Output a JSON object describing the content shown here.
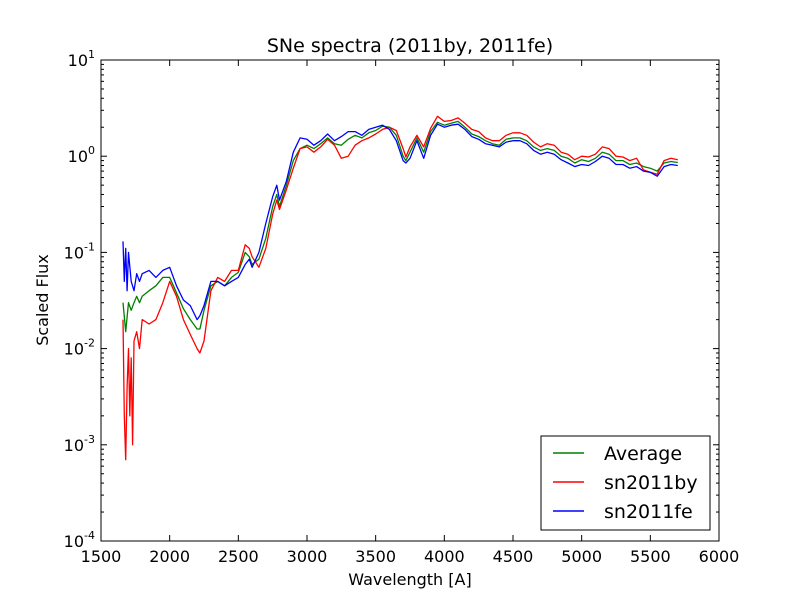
{
  "chart_data": {
    "type": "line",
    "title": "SNe spectra (2011by, 2011fe)",
    "xlabel": "Wavelength [A]",
    "ylabel": "Scaled Flux",
    "xlim": [
      1500,
      6000
    ],
    "ylim": [
      0.0001,
      10
    ],
    "yscale": "log",
    "xticks": [
      1500,
      2000,
      2500,
      3000,
      3500,
      4000,
      4500,
      5000,
      5500,
      6000
    ],
    "yticks": [
      {
        "value": 0.0001,
        "base": "10",
        "exp": "-4"
      },
      {
        "value": 0.001,
        "base": "10",
        "exp": "-3"
      },
      {
        "value": 0.01,
        "base": "10",
        "exp": "-2"
      },
      {
        "value": 0.1,
        "base": "10",
        "exp": "-1"
      },
      {
        "value": 1,
        "base": "10",
        "exp": "0"
      },
      {
        "value": 10,
        "base": "10",
        "exp": "1"
      }
    ],
    "grid": false,
    "legend_position": "lower-right",
    "series": [
      {
        "name": "Average",
        "color": "#008000",
        "x": [
          1660,
          1680,
          1700,
          1720,
          1740,
          1760,
          1780,
          1800,
          1850,
          1900,
          1950,
          2000,
          2050,
          2100,
          2150,
          2200,
          2220,
          2250,
          2300,
          2350,
          2400,
          2450,
          2500,
          2550,
          2580,
          2600,
          2650,
          2700,
          2750,
          2780,
          2800,
          2850,
          2900,
          2950,
          3000,
          3050,
          3100,
          3150,
          3200,
          3250,
          3300,
          3350,
          3400,
          3450,
          3500,
          3550,
          3600,
          3650,
          3700,
          3720,
          3750,
          3800,
          3850,
          3900,
          3950,
          4000,
          4050,
          4100,
          4150,
          4200,
          4250,
          4300,
          4350,
          4400,
          4450,
          4500,
          4550,
          4600,
          4650,
          4700,
          4750,
          4800,
          4850,
          4900,
          4950,
          5000,
          5050,
          5100,
          5150,
          5200,
          5250,
          5300,
          5350,
          5400,
          5450,
          5500,
          5550,
          5600,
          5650,
          5700
        ],
        "y": [
          0.03,
          0.015,
          0.03,
          0.025,
          0.03,
          0.035,
          0.03,
          0.035,
          0.04,
          0.045,
          0.055,
          0.055,
          0.038,
          0.026,
          0.02,
          0.016,
          0.016,
          0.025,
          0.045,
          0.05,
          0.045,
          0.055,
          0.062,
          0.1,
          0.09,
          0.075,
          0.085,
          0.14,
          0.3,
          0.4,
          0.3,
          0.5,
          0.9,
          1.2,
          1.3,
          1.2,
          1.35,
          1.55,
          1.35,
          1.3,
          1.5,
          1.65,
          1.55,
          1.75,
          1.85,
          2.05,
          2.0,
          1.65,
          1.0,
          0.9,
          1.1,
          1.55,
          1.1,
          1.8,
          2.25,
          2.1,
          2.2,
          2.3,
          2.0,
          1.7,
          1.6,
          1.45,
          1.35,
          1.3,
          1.5,
          1.55,
          1.55,
          1.45,
          1.25,
          1.15,
          1.2,
          1.15,
          1.0,
          0.95,
          0.85,
          0.92,
          0.88,
          0.95,
          1.1,
          1.05,
          0.9,
          0.9,
          0.82,
          0.85,
          0.78,
          0.75,
          0.7,
          0.85,
          0.88,
          0.86
        ]
      },
      {
        "name": "sn2011by",
        "color": "#ff0000",
        "x": [
          1660,
          1670,
          1680,
          1690,
          1700,
          1710,
          1720,
          1730,
          1740,
          1760,
          1780,
          1800,
          1850,
          1900,
          1950,
          2000,
          2050,
          2100,
          2150,
          2200,
          2220,
          2250,
          2300,
          2350,
          2400,
          2450,
          2500,
          2550,
          2580,
          2600,
          2650,
          2700,
          2750,
          2780,
          2800,
          2850,
          2900,
          2950,
          3000,
          3050,
          3100,
          3150,
          3200,
          3250,
          3300,
          3350,
          3400,
          3450,
          3500,
          3550,
          3600,
          3650,
          3700,
          3720,
          3750,
          3800,
          3850,
          3900,
          3950,
          4000,
          4050,
          4100,
          4150,
          4200,
          4250,
          4300,
          4350,
          4400,
          4450,
          4500,
          4550,
          4600,
          4650,
          4700,
          4750,
          4800,
          4850,
          4900,
          4950,
          5000,
          5050,
          5100,
          5150,
          5200,
          5250,
          5300,
          5350,
          5400,
          5450,
          5500,
          5550,
          5600,
          5650,
          5700
        ],
        "y": [
          0.02,
          0.002,
          0.0007,
          0.004,
          0.01,
          0.002,
          0.008,
          0.001,
          0.012,
          0.015,
          0.01,
          0.02,
          0.018,
          0.02,
          0.03,
          0.05,
          0.035,
          0.02,
          0.014,
          0.01,
          0.009,
          0.012,
          0.04,
          0.055,
          0.05,
          0.065,
          0.065,
          0.12,
          0.11,
          0.09,
          0.07,
          0.11,
          0.25,
          0.35,
          0.28,
          0.45,
          0.75,
          1.2,
          1.25,
          1.1,
          1.25,
          1.5,
          1.3,
          0.95,
          1.0,
          1.3,
          1.45,
          1.55,
          1.7,
          1.9,
          2.0,
          1.85,
          1.2,
          0.98,
          1.25,
          1.65,
          1.25,
          1.95,
          2.6,
          2.3,
          2.35,
          2.5,
          2.2,
          1.9,
          1.8,
          1.55,
          1.45,
          1.45,
          1.65,
          1.75,
          1.75,
          1.65,
          1.4,
          1.25,
          1.35,
          1.3,
          1.1,
          1.05,
          0.92,
          1.0,
          0.98,
          1.05,
          1.25,
          1.2,
          1.0,
          0.98,
          0.9,
          0.95,
          0.72,
          0.68,
          0.65,
          0.9,
          0.95,
          0.92
        ]
      },
      {
        "name": "sn2011fe",
        "color": "#0000ff",
        "x": [
          1660,
          1670,
          1680,
          1690,
          1700,
          1720,
          1740,
          1760,
          1780,
          1800,
          1850,
          1900,
          1950,
          2000,
          2050,
          2100,
          2150,
          2200,
          2220,
          2250,
          2300,
          2350,
          2400,
          2450,
          2500,
          2550,
          2580,
          2600,
          2650,
          2700,
          2750,
          2780,
          2800,
          2850,
          2900,
          2950,
          3000,
          3050,
          3100,
          3150,
          3200,
          3250,
          3300,
          3350,
          3400,
          3450,
          3500,
          3550,
          3600,
          3650,
          3700,
          3720,
          3750,
          3800,
          3850,
          3900,
          3950,
          4000,
          4050,
          4100,
          4150,
          4200,
          4250,
          4300,
          4350,
          4400,
          4450,
          4500,
          4550,
          4600,
          4650,
          4700,
          4750,
          4800,
          4850,
          4900,
          4950,
          5000,
          5050,
          5100,
          5150,
          5200,
          5250,
          5300,
          5350,
          5400,
          5450,
          5500,
          5550,
          5600,
          5650,
          5700
        ],
        "y": [
          0.13,
          0.05,
          0.11,
          0.04,
          0.1,
          0.05,
          0.04,
          0.06,
          0.05,
          0.06,
          0.065,
          0.055,
          0.065,
          0.07,
          0.045,
          0.032,
          0.028,
          0.02,
          0.022,
          0.028,
          0.05,
          0.05,
          0.045,
          0.05,
          0.055,
          0.075,
          0.085,
          0.07,
          0.1,
          0.2,
          0.38,
          0.5,
          0.35,
          0.55,
          1.1,
          1.55,
          1.5,
          1.3,
          1.45,
          1.7,
          1.45,
          1.6,
          1.8,
          1.8,
          1.65,
          1.9,
          2.0,
          2.1,
          1.9,
          1.45,
          0.9,
          0.85,
          0.95,
          1.45,
          0.95,
          1.65,
          2.15,
          2.0,
          2.1,
          2.15,
          1.9,
          1.6,
          1.5,
          1.35,
          1.3,
          1.25,
          1.4,
          1.45,
          1.45,
          1.35,
          1.15,
          1.05,
          1.1,
          1.05,
          0.92,
          0.85,
          0.78,
          0.82,
          0.8,
          0.88,
          1.0,
          0.95,
          0.82,
          0.82,
          0.75,
          0.78,
          0.7,
          0.68,
          0.62,
          0.78,
          0.82,
          0.8
        ]
      }
    ]
  }
}
